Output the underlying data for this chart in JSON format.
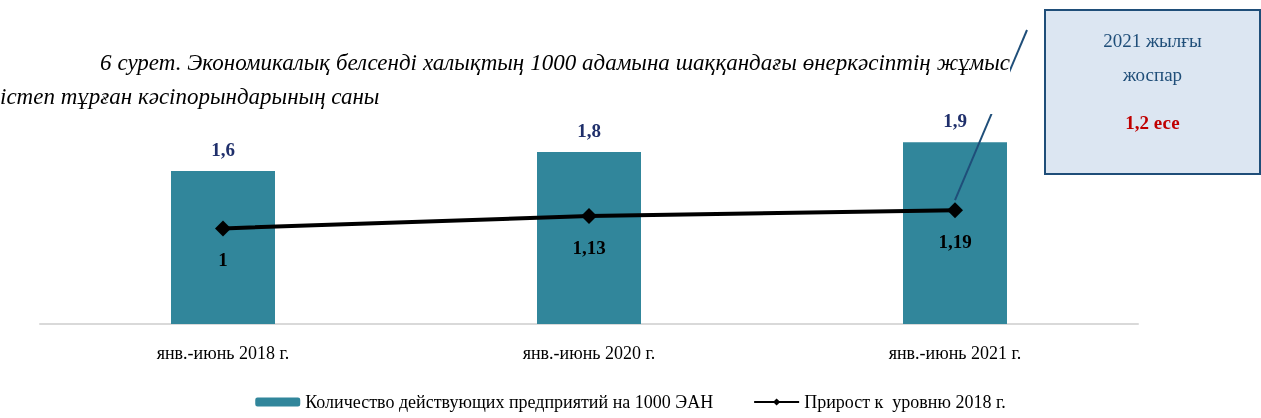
{
  "chart_data": {
    "type": "bar",
    "title": "6 сурет. Экономикалық белсенді халықтың 1000 адамына шаққандағы өнеркәсіптің жұмыс істеп тұрған кәсіпорындарының саны",
    "categories": [
      "янв.-июнь 2018 г.",
      "янв.-июнь 2020 г.",
      "янв.-июнь 2021 г."
    ],
    "series": [
      {
        "name": "Количество действующих предприятий на 1000 ЭАН",
        "color": "#31869b",
        "values": [
          1.6,
          1.8,
          1.9
        ],
        "value_labels": [
          "1,6",
          "1,8",
          "1,9"
        ]
      },
      {
        "name": "Прирост к  уровню 2018 г.",
        "type": "line",
        "color": "#000000",
        "values": [
          1,
          1.13,
          1.19
        ],
        "value_labels": [
          "1",
          "1,13",
          "1,19"
        ],
        "marker": "diamond"
      }
    ],
    "annotations": [
      "2021 жылғы жоспар",
      "1,2 есе"
    ],
    "legend": "bottom"
  }
}
